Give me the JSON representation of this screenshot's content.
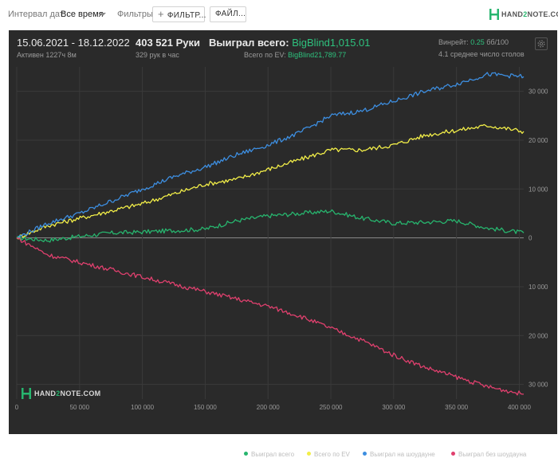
{
  "toolbar": {
    "date_interval_label": "Интервал дат:",
    "date_interval_value": "Все время",
    "filters_label": "Фильтры:",
    "filter_button": "ФИЛЬТР...",
    "file_button": "ФАЙЛ..."
  },
  "logo": {
    "text_pre": "HAND",
    "text_mid": "2",
    "text_post": "NOTE.COM"
  },
  "summary": {
    "date_range": "15.06.2021 - 18.12.2022",
    "active": "Активен 1227ч 8м",
    "hands": "403 521 Руки",
    "hands_per_hour": "329 рук в час",
    "won_label": "Выиграл всего:",
    "won_value": "BigBlind1,015.01",
    "ev_label": "Всего по EV:",
    "ev_value": "BigBlind21,789.77",
    "winrate_label": "Винрейт:",
    "winrate_value": "0.25",
    "winrate_unit": "бб/100",
    "avg_tables": "4.1 среднее число столов"
  },
  "watermark": {
    "text_pre": "HAND",
    "text_mid": "2",
    "text_post": "NOTE.COM"
  },
  "chart_data": {
    "type": "line",
    "xlim": [
      0,
      403521
    ],
    "ylim": [
      -33000,
      35000
    ],
    "x_ticks": [
      0,
      50000,
      100000,
      150000,
      200000,
      250000,
      300000,
      350000,
      400000
    ],
    "x_tick_labels": [
      "0",
      "50 000",
      "100 000",
      "150 000",
      "200 000",
      "250 000",
      "300 000",
      "350 000",
      "400 000"
    ],
    "y_ticks": [
      30000,
      20000,
      10000,
      0,
      -10000,
      -20000,
      -30000
    ],
    "y_tick_labels": [
      "30 000",
      "20 000",
      "10 000",
      "0",
      "10 000",
      "20 000",
      "30 000"
    ],
    "grid": true,
    "legend_position": "bottom-right",
    "x": [
      0,
      25000,
      50000,
      75000,
      100000,
      125000,
      150000,
      175000,
      200000,
      225000,
      250000,
      275000,
      300000,
      325000,
      350000,
      375000,
      403521
    ],
    "series": [
      {
        "name": "Выиграл всего",
        "color": "#27b56e",
        "values": [
          0,
          -500,
          300,
          1000,
          1200,
          1500,
          1800,
          3500,
          4500,
          5000,
          5500,
          4000,
          3000,
          3200,
          3500,
          2000,
          1015
        ]
      },
      {
        "name": "Всего по EV",
        "color": "#f2ee48",
        "values": [
          0,
          2500,
          4000,
          5500,
          7000,
          9000,
          11000,
          12000,
          14000,
          16000,
          18000,
          18000,
          19000,
          21000,
          22000,
          23000,
          21790
        ]
      },
      {
        "name": "Выиграл на шоудауне",
        "color": "#3d8ee0",
        "values": [
          0,
          3000,
          5000,
          7500,
          10000,
          12500,
          14500,
          17000,
          19000,
          21500,
          25000,
          26000,
          28000,
          30000,
          31500,
          33500,
          33000
        ]
      },
      {
        "name": "Выиграл без шоудауна",
        "color": "#e0406e",
        "values": [
          0,
          -3500,
          -5000,
          -6500,
          -8000,
          -9500,
          -11000,
          -12500,
          -14000,
          -16000,
          -18500,
          -21000,
          -24000,
          -26500,
          -28500,
          -30500,
          -32000
        ]
      }
    ]
  }
}
